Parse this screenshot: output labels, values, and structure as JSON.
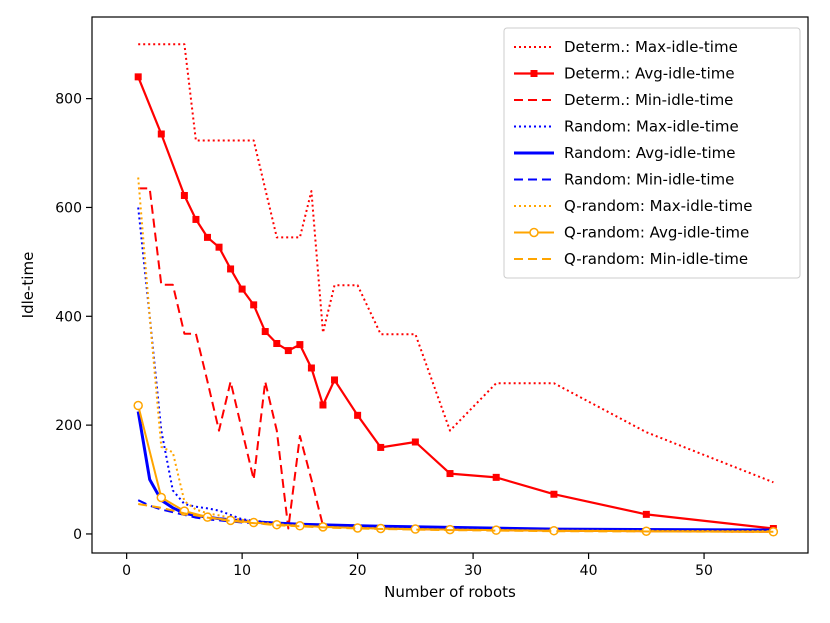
{
  "chart_data": {
    "type": "line",
    "title": "",
    "xlabel": "Number of robots",
    "ylabel": "Idle-time",
    "xlim": [
      -3,
      59
    ],
    "ylim": [
      -35,
      950
    ],
    "xticks": [
      0,
      10,
      20,
      30,
      40,
      50
    ],
    "yticks": [
      0,
      200,
      400,
      600,
      800
    ],
    "x_tick_labels": [
      "0",
      "10",
      "20",
      "30",
      "40",
      "50"
    ],
    "y_tick_labels": [
      "0",
      "200",
      "400",
      "600",
      "800"
    ],
    "grid": false,
    "legend_position": "top-right",
    "series": [
      {
        "name": "Determ.: Max-idle-time",
        "color": "#ff0000",
        "style": "dotted",
        "width": 2,
        "marker": "none",
        "x": [
          1,
          5,
          6,
          11,
          13,
          15,
          16,
          17,
          18,
          20,
          22,
          25,
          28,
          32,
          37,
          45,
          56
        ],
        "y": [
          900,
          900,
          723,
          723,
          545,
          545,
          630,
          370,
          457,
          457,
          367,
          367,
          190,
          277,
          277,
          187,
          95
        ]
      },
      {
        "name": "Determ.: Avg-idle-time",
        "color": "#ff0000",
        "style": "solid",
        "width": 2.2,
        "marker": "square",
        "x": [
          1,
          3,
          5,
          6,
          7,
          8,
          9,
          10,
          11,
          12,
          13,
          14,
          15,
          16,
          17,
          18,
          20,
          22,
          25,
          28,
          32,
          37,
          45,
          56
        ],
        "y": [
          840,
          735,
          622,
          578,
          545,
          527,
          487,
          450,
          421,
          372,
          350,
          337,
          348,
          305,
          237,
          283,
          218,
          159,
          169,
          111,
          104,
          73,
          36,
          10
        ]
      },
      {
        "name": "Determ.: Min-idle-time",
        "color": "#ff0000",
        "style": "dashed",
        "width": 2,
        "marker": "none",
        "x": [
          1,
          2,
          3,
          4,
          5,
          6,
          7,
          8,
          9,
          10,
          11,
          12,
          13,
          14,
          15,
          16,
          17,
          18,
          20,
          22,
          25,
          28,
          32,
          37,
          45,
          56
        ],
        "y": [
          635,
          635,
          458,
          458,
          368,
          368,
          280,
          190,
          280,
          190,
          100,
          280,
          190,
          10,
          180,
          100,
          15,
          13,
          12,
          10,
          9,
          8,
          7,
          6,
          5,
          4
        ]
      },
      {
        "name": "Random: Max-idle-time",
        "color": "#0000ff",
        "style": "dotted",
        "width": 2,
        "marker": "none",
        "x": [
          1,
          2,
          3,
          4,
          5,
          6,
          7,
          8,
          9,
          10,
          12,
          15,
          20,
          28,
          37,
          56
        ],
        "y": [
          600,
          400,
          190,
          80,
          55,
          50,
          47,
          43,
          35,
          27,
          22,
          18,
          15,
          12,
          9,
          7
        ]
      },
      {
        "name": "Random: Avg-idle-time",
        "color": "#0000ff",
        "style": "solid",
        "width": 3,
        "marker": "none",
        "x": [
          1,
          2,
          3,
          4,
          5,
          6,
          7,
          8,
          9,
          10,
          12,
          15,
          20,
          28,
          37,
          56
        ],
        "y": [
          225,
          100,
          62,
          48,
          38,
          34,
          31,
          28,
          26,
          24,
          21,
          18,
          15,
          12,
          9,
          7
        ]
      },
      {
        "name": "Random: Min-idle-time",
        "color": "#0000ff",
        "style": "dashed",
        "width": 2,
        "marker": "none",
        "x": [
          1,
          2,
          3,
          4,
          5,
          6,
          7,
          8,
          9,
          10,
          12,
          15,
          20,
          28,
          37,
          56
        ],
        "y": [
          62,
          52,
          45,
          40,
          35,
          30,
          27,
          25,
          23,
          21,
          19,
          16,
          13,
          10,
          8,
          6
        ]
      },
      {
        "name": "Q-random: Max-idle-time",
        "color": "#ffa500",
        "style": "dotted",
        "width": 2,
        "marker": "none",
        "x": [
          1,
          2,
          3,
          4,
          5,
          6,
          7,
          9,
          11,
          13,
          15,
          17,
          20,
          25,
          28,
          37,
          56
        ],
        "y": [
          655,
          400,
          160,
          150,
          60,
          45,
          38,
          30,
          22,
          18,
          15,
          13,
          11,
          9,
          8,
          6,
          5
        ]
      },
      {
        "name": "Q-random: Avg-idle-time",
        "color": "#ffa500",
        "style": "solid",
        "width": 2,
        "marker": "circle",
        "x": [
          1,
          3,
          5,
          7,
          9,
          11,
          13,
          15,
          17,
          20,
          22,
          25,
          28,
          32,
          37,
          45,
          56
        ],
        "y": [
          236,
          67,
          42,
          31,
          25,
          21,
          17,
          15,
          13,
          11,
          10,
          9,
          8,
          7,
          6,
          5,
          4
        ]
      },
      {
        "name": "Q-random: Min-idle-time",
        "color": "#ffa500",
        "style": "dashed",
        "width": 2,
        "marker": "none",
        "x": [
          1,
          3,
          5,
          7,
          9,
          11,
          13,
          15,
          17,
          20,
          25,
          28,
          37,
          56
        ],
        "y": [
          55,
          48,
          38,
          30,
          24,
          20,
          16,
          14,
          12,
          10,
          8,
          7,
          5,
          4
        ]
      }
    ]
  }
}
